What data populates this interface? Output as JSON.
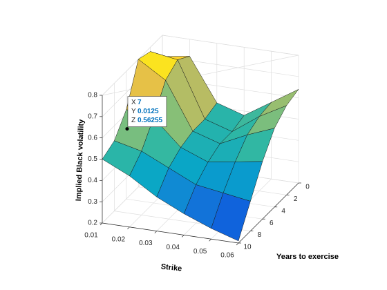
{
  "chart_data": {
    "type": "surface",
    "xlabel": "Years to exercise",
    "ylabel": "Strike",
    "zlabel": "Implied Black volatility",
    "x": [
      0,
      2,
      4,
      6,
      8,
      10
    ],
    "y": [
      0.01,
      0.02,
      0.03,
      0.04,
      0.05,
      0.06
    ],
    "z": [
      [
        0.7,
        0.72,
        0.52,
        0.48,
        0.56,
        0.64
      ],
      [
        0.78,
        0.76,
        0.5,
        0.46,
        0.55,
        0.62
      ],
      [
        0.8,
        0.72,
        0.5,
        0.46,
        0.52,
        0.57
      ],
      [
        0.62,
        0.6,
        0.48,
        0.43,
        0.45,
        0.47
      ],
      [
        0.53,
        0.5,
        0.44,
        0.38,
        0.36,
        0.34
      ],
      [
        0.5,
        0.44,
        0.36,
        0.3,
        0.25,
        0.21
      ]
    ],
    "xlim": [
      0,
      10
    ],
    "xticks": [
      0,
      2,
      4,
      6,
      8,
      10
    ],
    "ylim": [
      0.01,
      0.06
    ],
    "yticks": [
      0.01,
      0.02,
      0.03,
      0.04,
      0.05,
      0.06
    ],
    "zlim": [
      0.2,
      0.8
    ],
    "zticks": [
      0.2,
      0.3,
      0.4,
      0.5,
      0.6,
      0.7,
      0.8
    ],
    "grid": true,
    "colormap": [
      "#352a87",
      "#0f5cdd",
      "#1481d6",
      "#06a4ca",
      "#2eb7a4",
      "#87bf77",
      "#d1bb59",
      "#fec832",
      "#f9fb0e"
    ],
    "datatip": {
      "labels": [
        "X",
        "Y",
        "Z"
      ],
      "values": [
        7,
        0.0125,
        0.56255
      ]
    }
  }
}
